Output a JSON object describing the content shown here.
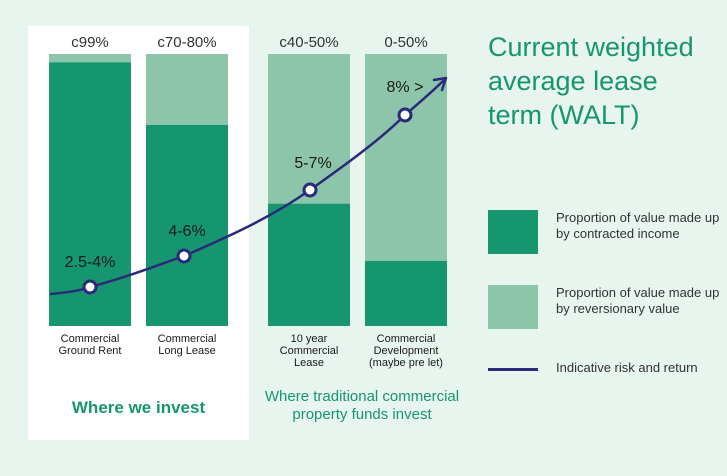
{
  "title": "Current weighted average lease term (WALT)",
  "groups": {
    "invest": "Where we invest",
    "funds": "Where traditional commercial property funds invest"
  },
  "legend": [
    {
      "text": "Proportion of value made up by contracted income",
      "color": "#16966e",
      "kind": "swatch"
    },
    {
      "text": "Proportion of value made up by reversionary value",
      "color": "#8cc5a9",
      "kind": "swatch"
    },
    {
      "text": "Indicative risk and return",
      "color": "#2b2a7a",
      "kind": "line"
    }
  ],
  "chart_data": {
    "type": "bar",
    "stacked": true,
    "categories": [
      [
        "Commercial",
        "Ground Rent"
      ],
      [
        "Commercial",
        "Long Lease"
      ],
      [
        "10 year",
        "Commercial",
        "Lease"
      ],
      [
        "Commercial",
        "Development",
        "(maybe pre let)"
      ]
    ],
    "top_labels": [
      "c99%",
      "c70-80%",
      "c40-50%",
      "0-50%"
    ],
    "series": [
      {
        "name": "Proportion of value made up by contracted income",
        "color": "#16966e",
        "values": [
          97,
          74,
          45,
          24
        ]
      },
      {
        "name": "Proportion of value made up by reversionary value",
        "color": "#8cc5a9",
        "values": [
          3,
          26,
          55,
          76
        ]
      }
    ],
    "ylim": [
      0,
      100
    ],
    "risk_return": {
      "name": "Indicative risk and return",
      "color": "#2b2a7a",
      "point_labels": [
        "2.5-4%",
        "4-6%",
        "5-7%",
        "8% >"
      ]
    }
  }
}
